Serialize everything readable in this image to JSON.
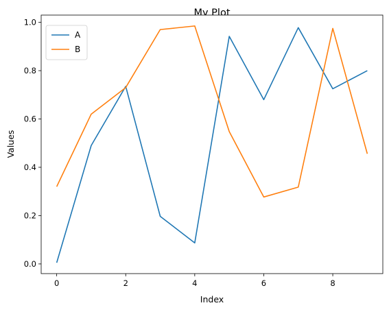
{
  "chart_data": {
    "type": "line",
    "title": "My Plot",
    "xlabel": "Index",
    "ylabel": "Values",
    "xlim": [
      -0.45,
      9.45
    ],
    "ylim": [
      -0.04,
      1.03
    ],
    "xticks": [
      0,
      2,
      4,
      6,
      8
    ],
    "xtick_labels": [
      "0",
      "2",
      "4",
      "6",
      "8"
    ],
    "yticks": [
      0.0,
      0.2,
      0.4,
      0.6,
      0.8,
      1.0
    ],
    "ytick_labels": [
      "0.0",
      "0.2",
      "0.4",
      "0.6",
      "0.8",
      "1.0"
    ],
    "x": [
      0,
      1,
      2,
      3,
      4,
      5,
      6,
      7,
      8,
      9
    ],
    "series": [
      {
        "name": "A",
        "color": "#1f77b4",
        "values": [
          0.005,
          0.49,
          0.735,
          0.197,
          0.087,
          0.942,
          0.68,
          0.978,
          0.725,
          0.8
        ]
      },
      {
        "name": "B",
        "color": "#ff7f0e",
        "values": [
          0.32,
          0.62,
          0.73,
          0.97,
          0.985,
          0.548,
          0.277,
          0.318,
          0.975,
          0.456
        ]
      }
    ],
    "legend_position": "upper-left",
    "grid": false
  }
}
